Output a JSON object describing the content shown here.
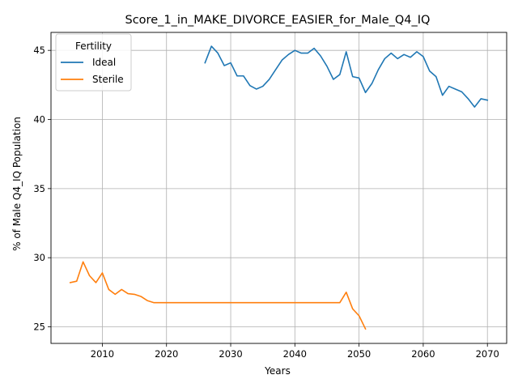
{
  "chart_data": {
    "type": "line",
    "title": "Score_1_in_MAKE_DIVORCE_EASIER_for_Male_Q4_IQ",
    "xlabel": "Years",
    "ylabel": "% of Male Q4_IQ Population",
    "xlim": [
      2002,
      2073
    ],
    "ylim": [
      23.8,
      46.3
    ],
    "xticks": [
      2010,
      2020,
      2030,
      2040,
      2050,
      2060,
      2070
    ],
    "yticks": [
      25,
      30,
      35,
      40,
      45
    ],
    "grid": true,
    "legend": {
      "title": "Fertility",
      "placement": "upper-left"
    },
    "series": [
      {
        "name": "Ideal",
        "color": "#1f77b4",
        "x": [
          2026,
          2027,
          2028,
          2029,
          2030,
          2031,
          2032,
          2033,
          2034,
          2035,
          2036,
          2037,
          2038,
          2039,
          2040,
          2041,
          2042,
          2043,
          2044,
          2045,
          2046,
          2047,
          2048,
          2049,
          2050,
          2051,
          2052,
          2053,
          2054,
          2055,
          2056,
          2057,
          2058,
          2059,
          2060,
          2061,
          2062,
          2063,
          2064,
          2065,
          2066,
          2067,
          2068,
          2069,
          2070
        ],
        "y": [
          44.1,
          45.3,
          44.8,
          43.9,
          44.1,
          43.15,
          43.15,
          42.45,
          42.2,
          42.4,
          42.9,
          43.6,
          44.3,
          44.7,
          45.0,
          44.8,
          44.8,
          45.15,
          44.6,
          43.85,
          42.9,
          43.25,
          44.9,
          43.1,
          43.0,
          41.95,
          42.6,
          43.6,
          44.4,
          44.8,
          44.4,
          44.7,
          44.5,
          44.9,
          44.55,
          43.5,
          43.1,
          41.75,
          42.4,
          42.2,
          42.0,
          41.5,
          40.9,
          41.5,
          41.4
        ]
      },
      {
        "name": "Sterile",
        "color": "#ff7f0e",
        "x": [
          2005,
          2006,
          2007,
          2008,
          2009,
          2010,
          2011,
          2012,
          2013,
          2014,
          2015,
          2016,
          2017,
          2018,
          2019,
          2020,
          2021,
          2022,
          2023,
          2024,
          2025,
          2026,
          2027,
          2028,
          2029,
          2030,
          2031,
          2032,
          2033,
          2034,
          2035,
          2036,
          2037,
          2038,
          2039,
          2040,
          2041,
          2042,
          2043,
          2044,
          2045,
          2046,
          2047,
          2048,
          2049,
          2050,
          2051
        ],
        "y": [
          28.2,
          28.3,
          29.7,
          28.7,
          28.2,
          28.9,
          27.7,
          27.35,
          27.7,
          27.4,
          27.35,
          27.2,
          26.9,
          26.75,
          26.75,
          26.75,
          26.75,
          26.75,
          26.75,
          26.75,
          26.75,
          26.75,
          26.75,
          26.75,
          26.75,
          26.75,
          26.75,
          26.75,
          26.75,
          26.75,
          26.75,
          26.75,
          26.75,
          26.75,
          26.75,
          26.75,
          26.75,
          26.75,
          26.75,
          26.75,
          26.75,
          26.75,
          26.75,
          27.5,
          26.3,
          25.8,
          24.85
        ]
      }
    ]
  }
}
